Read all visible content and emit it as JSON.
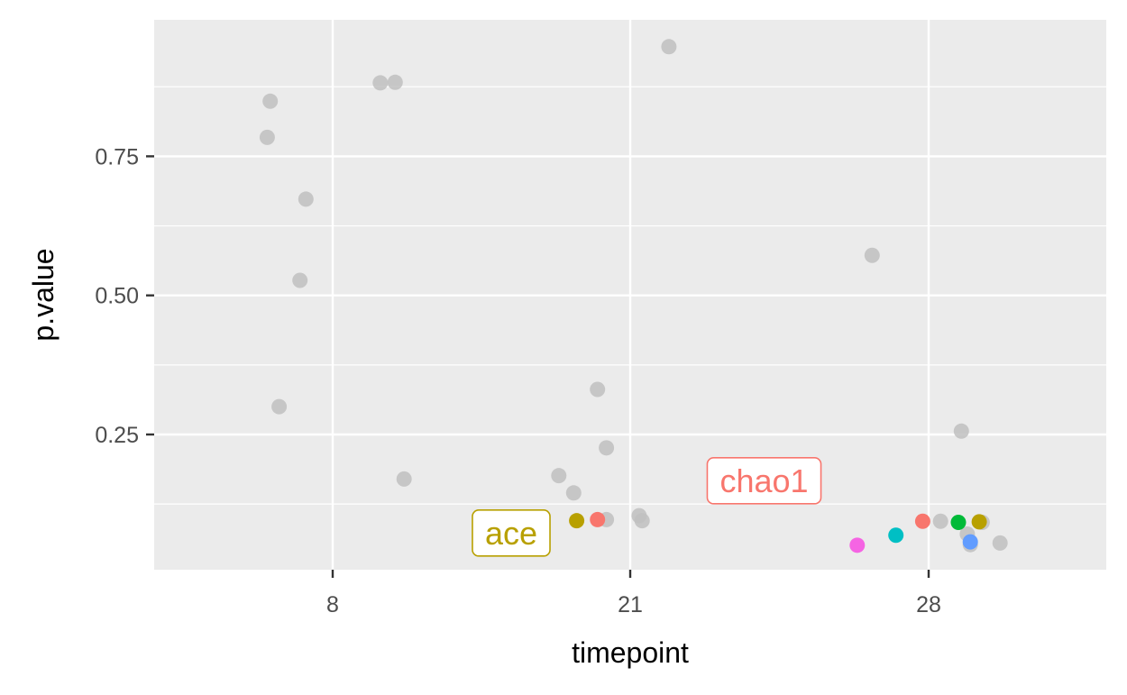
{
  "chart_data": {
    "type": "scatter",
    "title": "",
    "xlabel": "timepoint",
    "ylabel": "p.value",
    "x_scale": "discrete",
    "x_categories": [
      "8",
      "21",
      "28"
    ],
    "x_tick_labels": [
      "8",
      "21",
      "28"
    ],
    "y_tick_values": [
      0.25,
      0.5,
      0.75
    ],
    "y_tick_labels": [
      "0.25",
      "0.50",
      "0.75"
    ],
    "grid": true,
    "legend": "none",
    "colors": {
      "panel": "#ebebeb",
      "grid": "#ffffff",
      "muted_point": "#bfbfbf",
      "axis_text": "#4d4d4d"
    },
    "background_points": [
      {
        "x": "8",
        "jitter": -0.21,
        "y": 0.849
      },
      {
        "x": "8",
        "jitter": -0.22,
        "y": 0.784
      },
      {
        "x": "8",
        "jitter": -0.09,
        "y": 0.673
      },
      {
        "x": "8",
        "jitter": -0.11,
        "y": 0.527
      },
      {
        "x": "8",
        "jitter": -0.18,
        "y": 0.3
      },
      {
        "x": "8",
        "jitter": 0.16,
        "y": 0.882
      },
      {
        "x": "8",
        "jitter": 0.21,
        "y": 0.883
      },
      {
        "x": "8",
        "jitter": 0.24,
        "y": 0.17
      },
      {
        "x": "21",
        "jitter": 0.13,
        "y": 0.947
      },
      {
        "x": "21",
        "jitter": -0.11,
        "y": 0.331
      },
      {
        "x": "21",
        "jitter": -0.08,
        "y": 0.226
      },
      {
        "x": "21",
        "jitter": -0.24,
        "y": 0.176
      },
      {
        "x": "21",
        "jitter": -0.19,
        "y": 0.145
      },
      {
        "x": "21",
        "jitter": 0.03,
        "y": 0.104
      },
      {
        "x": "21",
        "jitter": 0.04,
        "y": 0.095
      },
      {
        "x": "21",
        "jitter": -0.08,
        "y": 0.097
      },
      {
        "x": "28",
        "jitter": -0.19,
        "y": 0.572
      },
      {
        "x": "28",
        "jitter": 0.11,
        "y": 0.256
      },
      {
        "x": "28",
        "jitter": 0.04,
        "y": 0.094
      },
      {
        "x": "28",
        "jitter": 0.18,
        "y": 0.092
      },
      {
        "x": "28",
        "jitter": 0.13,
        "y": 0.071
      },
      {
        "x": "28",
        "jitter": 0.14,
        "y": 0.052
      },
      {
        "x": "28",
        "jitter": 0.24,
        "y": 0.055
      }
    ],
    "highlight_points": [
      {
        "x": "21",
        "jitter": -0.18,
        "y": 0.095,
        "color": "#b8a000"
      },
      {
        "x": "21",
        "jitter": -0.11,
        "y": 0.097,
        "color": "#f8766d"
      },
      {
        "x": "28",
        "jitter": -0.02,
        "y": 0.094,
        "color": "#f8766d"
      },
      {
        "x": "28",
        "jitter": 0.1,
        "y": 0.092,
        "color": "#00ba38"
      },
      {
        "x": "28",
        "jitter": 0.17,
        "y": 0.093,
        "color": "#b8a000"
      },
      {
        "x": "28",
        "jitter": -0.11,
        "y": 0.069,
        "color": "#00bfc4"
      },
      {
        "x": "28",
        "jitter": 0.14,
        "y": 0.057,
        "color": "#619cff"
      },
      {
        "x": "28",
        "jitter": -0.24,
        "y": 0.051,
        "color": "#f564e3"
      }
    ],
    "labels": [
      {
        "text": "ace",
        "color": "#b8a000",
        "x": "21",
        "jitter": -0.4,
        "y": 0.072
      },
      {
        "text": "chao1",
        "color": "#f8766d",
        "x": "21",
        "jitter": 0.45,
        "y": 0.166
      }
    ]
  }
}
